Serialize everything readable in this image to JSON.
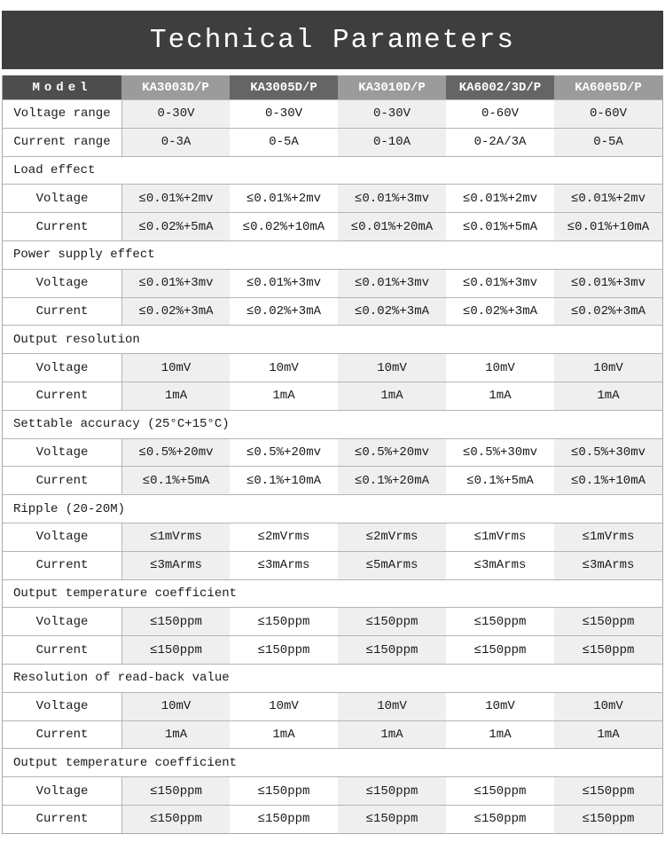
{
  "title": "Technical Parameters",
  "colors": {
    "title_bar_bg": "#3e3e3e",
    "header_model_bg": "#4e4e4e",
    "header_light_bg": "#9b9b9b",
    "header_dark_bg": "#656565",
    "zebra_column_bg": "#efefef",
    "grid_line": "#b4b4b4",
    "header_text": "#ffffff"
  },
  "table": {
    "model_header": "Model",
    "models": [
      "KA3003D/P",
      "KA3005D/P",
      "KA3010D/P",
      "KA6002/3D/P",
      "KA6005D/P"
    ],
    "rows": [
      {
        "type": "data",
        "label": "Voltage range",
        "values": [
          "0-30V",
          "0-30V",
          "0-30V",
          "0-60V",
          "0-60V"
        ]
      },
      {
        "type": "data",
        "label": "Current range",
        "values": [
          "0-3A",
          "0-5A",
          "0-10A",
          "0-2A/3A",
          "0-5A"
        ]
      },
      {
        "type": "section",
        "label": "Load effect"
      },
      {
        "type": "data",
        "label": "Voltage",
        "values": [
          "≤0.01%+2mv",
          "≤0.01%+2mv",
          "≤0.01%+3mv",
          "≤0.01%+2mv",
          "≤0.01%+2mv"
        ]
      },
      {
        "type": "data",
        "label": "Current",
        "values": [
          "≤0.02%+5mA",
          "≤0.02%+10mA",
          "≤0.01%+20mA",
          "≤0.01%+5mA",
          "≤0.01%+10mA"
        ]
      },
      {
        "type": "section",
        "label": "Power supply effect"
      },
      {
        "type": "data",
        "label": "Voltage",
        "values": [
          "≤0.01%+3mv",
          "≤0.01%+3mv",
          "≤0.01%+3mv",
          "≤0.01%+3mv",
          "≤0.01%+3mv"
        ]
      },
      {
        "type": "data",
        "label": "Current",
        "values": [
          "≤0.02%+3mA",
          "≤0.02%+3mA",
          "≤0.02%+3mA",
          "≤0.02%+3mA",
          "≤0.02%+3mA"
        ]
      },
      {
        "type": "section",
        "label": "Output resolution"
      },
      {
        "type": "data",
        "label": "Voltage",
        "values": [
          "10mV",
          "10mV",
          "10mV",
          "10mV",
          "10mV"
        ]
      },
      {
        "type": "data",
        "label": "Current",
        "values": [
          "1mA",
          "1mA",
          "1mA",
          "1mA",
          "1mA"
        ]
      },
      {
        "type": "section",
        "label": "Settable accuracy (25°C+15°C)"
      },
      {
        "type": "data",
        "label": "Voltage",
        "values": [
          "≤0.5%+20mv",
          "≤0.5%+20mv",
          "≤0.5%+20mv",
          "≤0.5%+30mv",
          "≤0.5%+30mv"
        ]
      },
      {
        "type": "data",
        "label": "Current",
        "values": [
          "≤0.1%+5mA",
          "≤0.1%+10mA",
          "≤0.1%+20mA",
          "≤0.1%+5mA",
          "≤0.1%+10mA"
        ]
      },
      {
        "type": "section",
        "label": "Ripple (20-20M)"
      },
      {
        "type": "data",
        "label": "Voltage",
        "values": [
          "≤1mVrms",
          "≤2mVrms",
          "≤2mVrms",
          "≤1mVrms",
          "≤1mVrms"
        ]
      },
      {
        "type": "data",
        "label": "Current",
        "values": [
          "≤3mArms",
          "≤3mArms",
          "≤5mArms",
          "≤3mArms",
          "≤3mArms"
        ]
      },
      {
        "type": "section",
        "label": "Output temperature coefficient"
      },
      {
        "type": "data",
        "label": "Voltage",
        "values": [
          "≤150ppm",
          "≤150ppm",
          "≤150ppm",
          "≤150ppm",
          "≤150ppm"
        ]
      },
      {
        "type": "data",
        "label": "Current",
        "values": [
          "≤150ppm",
          "≤150ppm",
          "≤150ppm",
          "≤150ppm",
          "≤150ppm"
        ]
      },
      {
        "type": "section",
        "label": "Resolution of read-back value"
      },
      {
        "type": "data",
        "label": "Voltage",
        "values": [
          "10mV",
          "10mV",
          "10mV",
          "10mV",
          "10mV"
        ]
      },
      {
        "type": "data",
        "label": "Current",
        "values": [
          "1mA",
          "1mA",
          "1mA",
          "1mA",
          "1mA"
        ]
      },
      {
        "type": "section",
        "label": "Output temperature coefficient"
      },
      {
        "type": "data",
        "label": "Voltage",
        "values": [
          "≤150ppm",
          "≤150ppm",
          "≤150ppm",
          "≤150ppm",
          "≤150ppm"
        ]
      },
      {
        "type": "data",
        "label": "Current",
        "values": [
          "≤150ppm",
          "≤150ppm",
          "≤150ppm",
          "≤150ppm",
          "≤150ppm"
        ]
      }
    ]
  }
}
